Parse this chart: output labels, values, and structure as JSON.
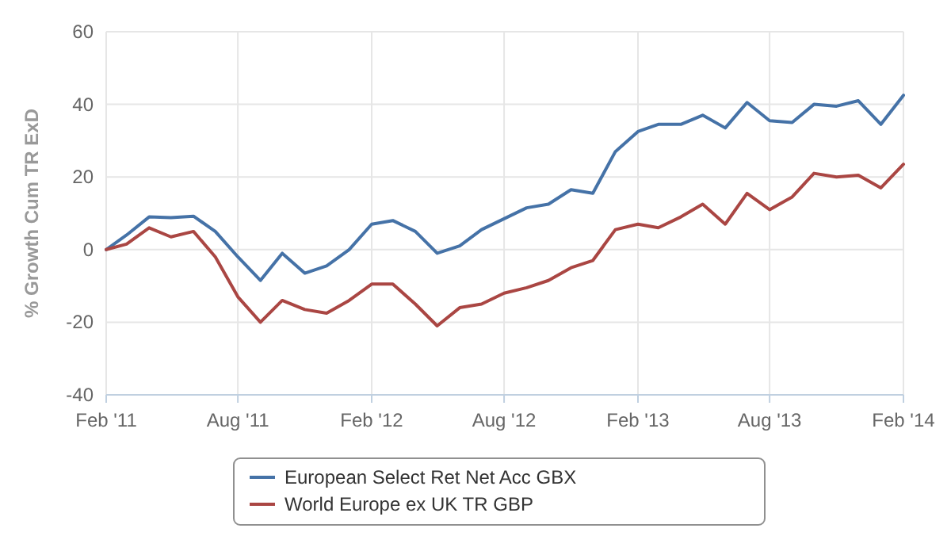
{
  "chart_data": {
    "type": "line",
    "ylabel": "% Growth Cum TR ExD",
    "x": [
      "2011-02",
      "2011-03",
      "2011-04",
      "2011-05",
      "2011-06",
      "2011-07",
      "2011-08",
      "2011-09",
      "2011-10",
      "2011-11",
      "2011-12",
      "2012-01",
      "2012-02",
      "2012-03",
      "2012-04",
      "2012-05",
      "2012-06",
      "2012-07",
      "2012-08",
      "2012-09",
      "2012-10",
      "2012-11",
      "2012-12",
      "2013-01",
      "2013-02",
      "2013-03",
      "2013-04",
      "2013-05",
      "2013-06",
      "2013-07",
      "2013-08",
      "2013-09",
      "2013-10",
      "2013-11",
      "2013-12",
      "2014-01",
      "2014-02"
    ],
    "series": [
      {
        "name": "European Select Ret Net Acc GBX",
        "color": "#4572a7",
        "values": [
          0,
          4,
          9,
          8.8,
          9.2,
          5,
          -2,
          -8.5,
          -1,
          -6.5,
          -4.5,
          0,
          7,
          8,
          5,
          -1,
          1,
          5.5,
          8.5,
          11.5,
          12.5,
          16.5,
          15.5,
          27,
          32.5,
          34.5,
          34.5,
          37,
          33.5,
          40.5,
          35.5,
          35,
          40,
          39.5,
          41,
          34.5,
          42.5
        ]
      },
      {
        "name": "World Europe ex UK TR GBP",
        "color": "#aa4643",
        "values": [
          0,
          1.5,
          6,
          3.5,
          5,
          -2,
          -13,
          -20,
          -14,
          -16.5,
          -17.5,
          -14,
          -9.5,
          -9.5,
          -15,
          -21,
          -16,
          -15,
          -12,
          -10.5,
          -8.5,
          -5,
          -3,
          5.5,
          7,
          6,
          9,
          12.5,
          7,
          15.5,
          11,
          14.5,
          21,
          20,
          20.5,
          17,
          23.5
        ]
      }
    ],
    "xlim": [
      "2011-02",
      "2014-02"
    ],
    "xticks": [
      {
        "value": "2011-02",
        "label": "Feb '11"
      },
      {
        "value": "2011-08",
        "label": "Aug '11"
      },
      {
        "value": "2012-02",
        "label": "Feb '12"
      },
      {
        "value": "2012-08",
        "label": "Aug '12"
      },
      {
        "value": "2013-02",
        "label": "Feb '13"
      },
      {
        "value": "2013-08",
        "label": "Aug '13"
      },
      {
        "value": "2014-02",
        "label": "Feb '14"
      }
    ],
    "ylim": [
      -40,
      60
    ],
    "yticks": [
      -40,
      -20,
      0,
      20,
      40,
      60
    ],
    "grid": true,
    "legend": "bottom",
    "marker": "none",
    "line_style": "solid"
  }
}
